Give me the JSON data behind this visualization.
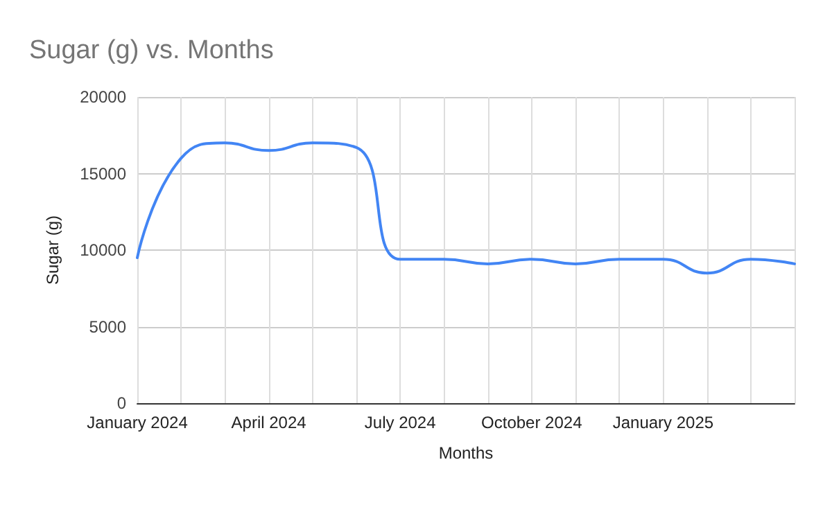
{
  "chart_data": {
    "type": "line",
    "title": "Sugar (g) vs. Months",
    "xlabel": "Months",
    "ylabel": "Sugar (g)",
    "categories": [
      "January 2024",
      null,
      null,
      "April 2024",
      null,
      null,
      "July 2024",
      null,
      null,
      "October 2024",
      null,
      null,
      "January 2025",
      null,
      null,
      null
    ],
    "series": [
      {
        "color": "#4285f4",
        "values": [
          9500,
          16000,
          17000,
          16500,
          17000,
          16700,
          9400,
          9400,
          9100,
          9400,
          9100,
          9400,
          9400,
          8500,
          9400,
          9100
        ]
      }
    ],
    "ylim": [
      0,
      20000
    ],
    "yticks": [
      0,
      5000,
      10000,
      15000,
      20000
    ],
    "grid": true,
    "marker": "none",
    "line_style": "solid"
  }
}
